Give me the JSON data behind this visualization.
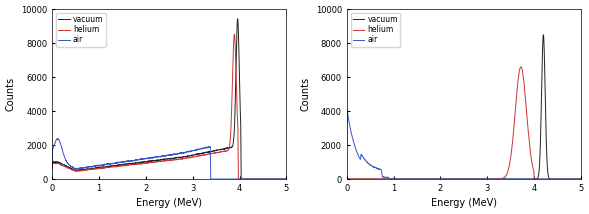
{
  "xlim": [
    0,
    5
  ],
  "ylim": [
    0,
    10000
  ],
  "xlabel": "Energy (MeV)",
  "ylabel": "Counts",
  "yticks": [
    0,
    2000,
    4000,
    6000,
    8000,
    10000
  ],
  "xticks": [
    0,
    1,
    2,
    3,
    4,
    5
  ],
  "legend": [
    "vacuum",
    "helium",
    "air"
  ],
  "colors": {
    "vacuum": "#222222",
    "helium": "#cc3333",
    "air": "#3355cc"
  }
}
